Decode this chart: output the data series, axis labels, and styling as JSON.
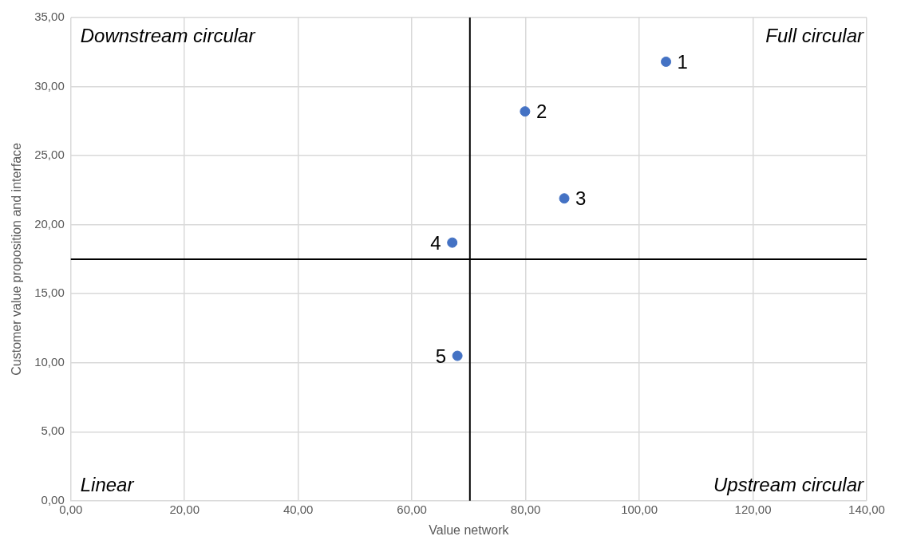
{
  "chart_data": {
    "type": "scatter",
    "xlabel": "Value network",
    "ylabel": "Customer value proposition and interface",
    "x": [
      104.7,
      79.9,
      86.8,
      67.1,
      68.0
    ],
    "values": [
      31.8,
      28.2,
      21.9,
      18.7,
      10.5
    ],
    "color": "#4472c4",
    "marker": "circle",
    "grid": true,
    "legend": false,
    "xlim": [
      0,
      140
    ],
    "ylim": [
      0,
      35
    ],
    "xticks": [
      {
        "value": 0,
        "label": "0,00"
      },
      {
        "value": 20,
        "label": "20,00"
      },
      {
        "value": 40,
        "label": "40,00"
      },
      {
        "value": 60,
        "label": "60,00"
      },
      {
        "value": 80,
        "label": "80,00"
      },
      {
        "value": 100,
        "label": "100,00"
      },
      {
        "value": 120,
        "label": "120,00"
      },
      {
        "value": 140,
        "label": "140,00"
      }
    ],
    "yticks": [
      {
        "value": 0,
        "label": "0,00"
      },
      {
        "value": 5,
        "label": "5,00"
      },
      {
        "value": 10,
        "label": "10,00"
      },
      {
        "value": 15,
        "label": "15,00"
      },
      {
        "value": 20,
        "label": "20,00"
      },
      {
        "value": 25,
        "label": "25,00"
      },
      {
        "value": 30,
        "label": "30,00"
      },
      {
        "value": 35,
        "label": "35,00"
      }
    ],
    "ref_lines": [
      {
        "axis": "x",
        "value": 70.2,
        "color": "#000000"
      },
      {
        "axis": "y",
        "value": 17.5,
        "color": "#000000"
      }
    ],
    "annotations": [
      "Downstream circular",
      "Full circular",
      "Linear",
      "Upstream circular",
      {
        "text": "1",
        "x": 104.7,
        "y": 31.8
      },
      {
        "text": "2",
        "x": 79.9,
        "y": 28.2
      },
      {
        "text": "3",
        "x": 86.8,
        "y": 21.9
      },
      {
        "text": "4",
        "x": 67.1,
        "y": 18.7
      },
      {
        "text": "5",
        "x": 68.0,
        "y": 10.5
      }
    ]
  }
}
